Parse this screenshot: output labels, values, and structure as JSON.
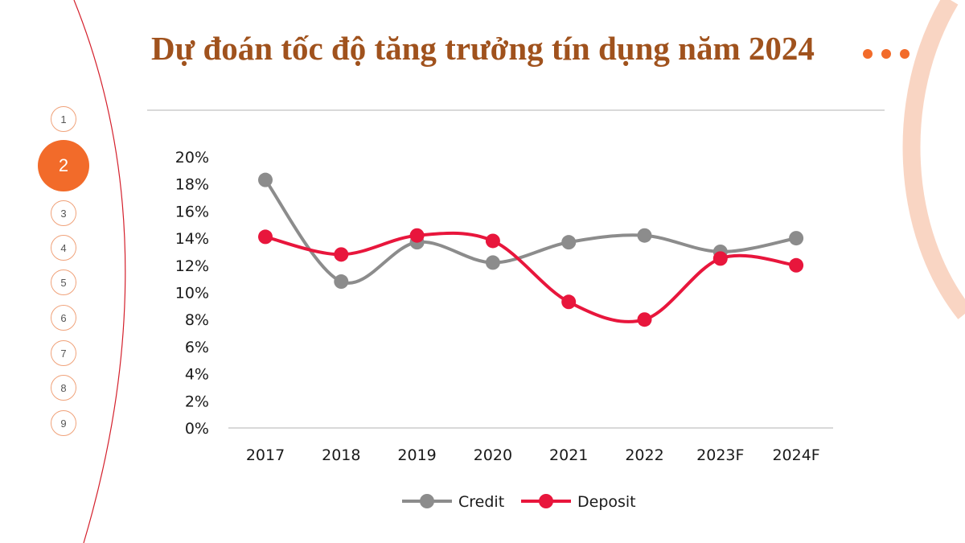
{
  "title": "Dự đoán tốc độ tăng trưởng tín dụng năm 2024",
  "nav": {
    "items": [
      "1",
      "2",
      "3",
      "4",
      "5",
      "6",
      "7",
      "8",
      "9"
    ],
    "active_index": 1
  },
  "colors": {
    "title": "#a0521d",
    "accent": "#f26b2a",
    "credit": "#8c8c8c",
    "deposit": "#e8163c"
  },
  "chart_data": {
    "type": "line",
    "categories": [
      "2017",
      "2018",
      "2019",
      "2020",
      "2021",
      "2022",
      "2023F",
      "2024F"
    ],
    "series": [
      {
        "name": "Credit",
        "values": [
          18.3,
          10.8,
          13.7,
          12.2,
          13.7,
          14.2,
          13.0,
          14.0
        ]
      },
      {
        "name": "Deposit",
        "values": [
          14.1,
          12.8,
          14.2,
          13.8,
          9.3,
          8.0,
          12.5,
          12.0
        ]
      }
    ],
    "y_ticks": [
      "0%",
      "2%",
      "4%",
      "6%",
      "8%",
      "10%",
      "12%",
      "14%",
      "16%",
      "18%",
      "20%"
    ],
    "ylim": [
      0,
      20
    ],
    "smooth": true,
    "grid": false,
    "legend_position": "bottom"
  }
}
